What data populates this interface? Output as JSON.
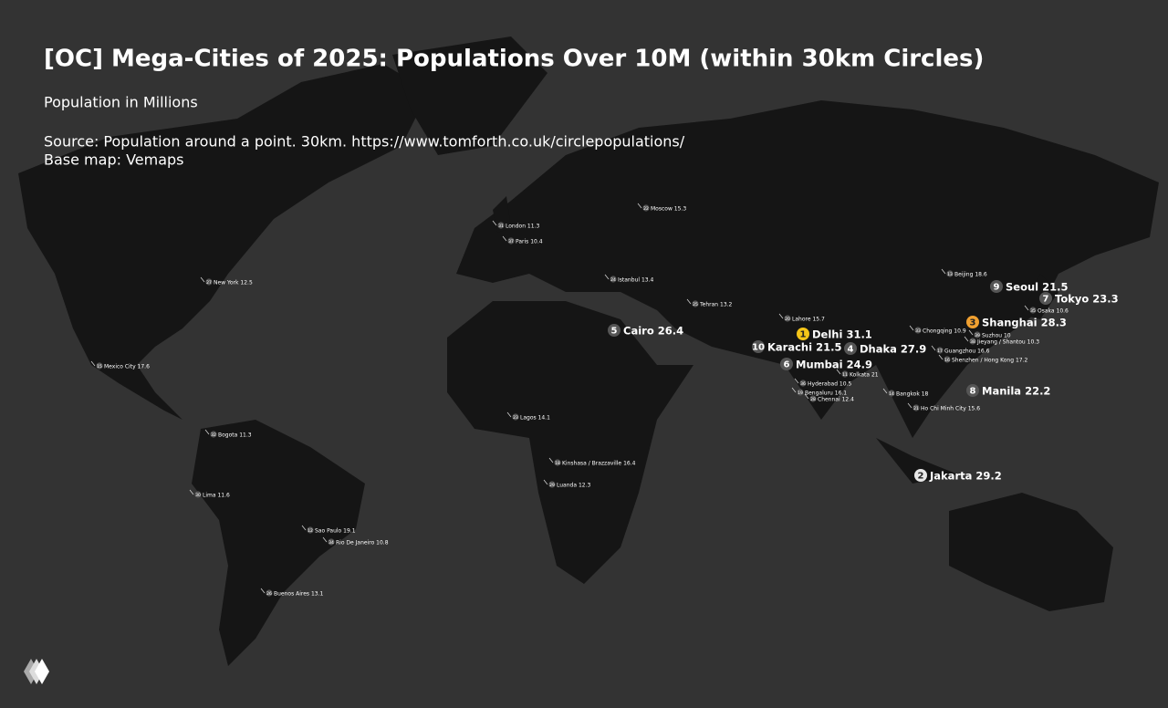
{
  "title": "[OC] Mega-Cities of 2025: Populations Over 10M (within 30km Circles)",
  "subtitle": "Population in Millions",
  "source": "Source: Population around a point. 30km. https://www.tomforth.co.uk/circlepopulations/",
  "base_map": "Base map: Vemaps",
  "cities": [
    {
      "rank": 1,
      "name": "Delhi",
      "population": 31.1
    },
    {
      "rank": 2,
      "name": "Jakarta",
      "population": 29.2
    },
    {
      "rank": 3,
      "name": "Shanghai",
      "population": 28.3
    },
    {
      "rank": 4,
      "name": "Dhaka",
      "population": 27.9
    },
    {
      "rank": 5,
      "name": "Cairo",
      "population": 26.4
    },
    {
      "rank": 6,
      "name": "Mumbai",
      "population": 24.9
    },
    {
      "rank": 7,
      "name": "Tokyo",
      "population": 23.3
    },
    {
      "rank": 8,
      "name": "Manila",
      "population": 22.2
    },
    {
      "rank": 9,
      "name": "Seoul",
      "population": 21.5
    },
    {
      "rank": 10,
      "name": "Karachi",
      "population": 21.5
    },
    {
      "rank": 11,
      "name": "Kolkata",
      "population": 21.0
    },
    {
      "rank": 12,
      "name": "Sao Paulo",
      "population": 19.1
    },
    {
      "rank": 13,
      "name": "Beijing",
      "population": 18.6
    },
    {
      "rank": 14,
      "name": "Bangkok",
      "population": 18.0
    },
    {
      "rank": 15,
      "name": "Mexico City",
      "population": 17.6
    },
    {
      "rank": 16,
      "name": "Shenzhen / Hong Kong",
      "population": 17.2
    },
    {
      "rank": 17,
      "name": "Guangzhou",
      "population": 16.6
    },
    {
      "rank": 18,
      "name": "Kinshasa / Brazzaville",
      "population": 16.4
    },
    {
      "rank": 19,
      "name": "Bengaluru",
      "population": 16.1
    },
    {
      "rank": 20,
      "name": "Lahore",
      "population": 15.7
    },
    {
      "rank": 21,
      "name": "Ho Chi Minh City",
      "population": 15.6
    },
    {
      "rank": 22,
      "name": "Moscow",
      "population": 15.3
    },
    {
      "rank": 23,
      "name": "Lagos",
      "population": 14.1
    },
    {
      "rank": 24,
      "name": "Istanbul",
      "population": 13.4
    },
    {
      "rank": 25,
      "name": "Tehran",
      "population": 13.2
    },
    {
      "rank": 26,
      "name": "Buenos Aires",
      "population": 13.1
    },
    {
      "rank": 27,
      "name": "New York",
      "population": 12.5
    },
    {
      "rank": 28,
      "name": "Chennai",
      "population": 12.4
    },
    {
      "rank": 29,
      "name": "Luanda",
      "population": 12.3
    },
    {
      "rank": 30,
      "name": "Lima",
      "population": 11.6
    },
    {
      "rank": 31,
      "name": "London",
      "population": 11.3
    },
    {
      "rank": 32,
      "name": "Bogota",
      "population": 11.3
    },
    {
      "rank": 33,
      "name": "Chongqing",
      "population": 10.9
    },
    {
      "rank": 34,
      "name": "Rio De Janeiro",
      "population": 10.8
    },
    {
      "rank": 35,
      "name": "Osaka",
      "population": 10.6
    },
    {
      "rank": 36,
      "name": "Hyderabad",
      "population": 10.5
    },
    {
      "rank": 37,
      "name": "Paris",
      "population": 10.4
    },
    {
      "rank": 38,
      "name": "Jieyang / Shantou",
      "population": 10.3
    },
    {
      "rank": 39,
      "name": "Suzhou",
      "population": 10.0
    }
  ]
}
